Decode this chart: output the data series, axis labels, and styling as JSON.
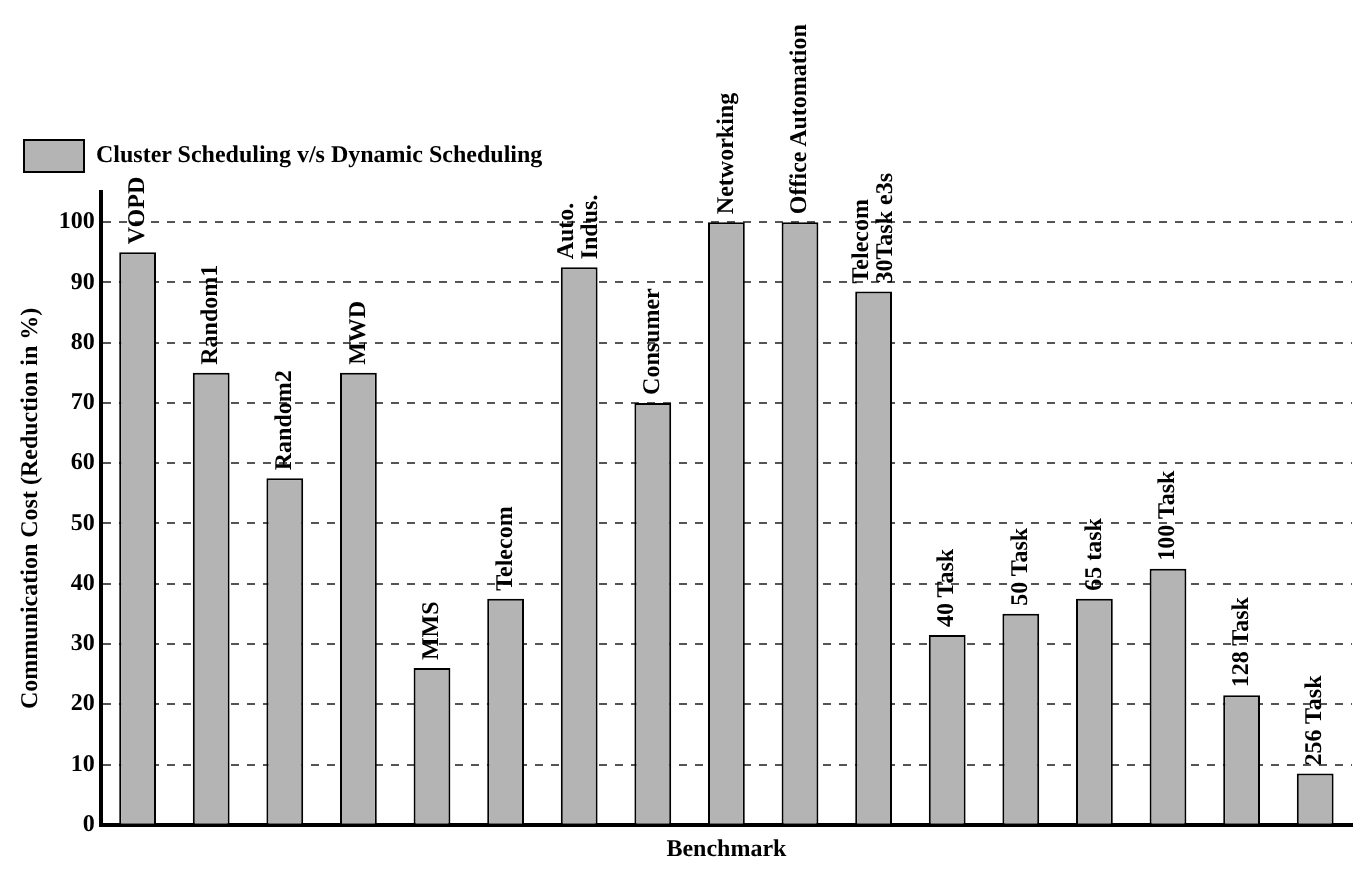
{
  "chart_data": {
    "type": "bar",
    "xlabel": "Benchmark",
    "ylabel": "Communication Cost (Reduction in %)",
    "categories": [
      "VOPD",
      "Random1",
      "Random2",
      "MWD",
      "MMS",
      "Telecom",
      "Auto.\nIndus.",
      "Consumer",
      "Networking",
      "Office Automation",
      "Telecom\n30Task e3s",
      "40 Task",
      "50 Task",
      "65 task",
      "100 Task",
      "128 Task",
      "256 Task"
    ],
    "series": [
      {
        "name": "Cluster Scheduling v/s Dynamic Scheduling",
        "color": "#b4b4b4",
        "values": [
          95,
          75,
          57.5,
          75,
          26,
          37.5,
          92.5,
          70,
          100,
          100,
          88.5,
          31.5,
          35,
          37.5,
          42.5,
          21.5,
          8.5
        ]
      }
    ],
    "ylim": [
      0,
      105
    ],
    "yticks": [
      0,
      10,
      20,
      30,
      40,
      50,
      60,
      70,
      80,
      90,
      100
    ],
    "grid": "y",
    "legend": "top"
  }
}
